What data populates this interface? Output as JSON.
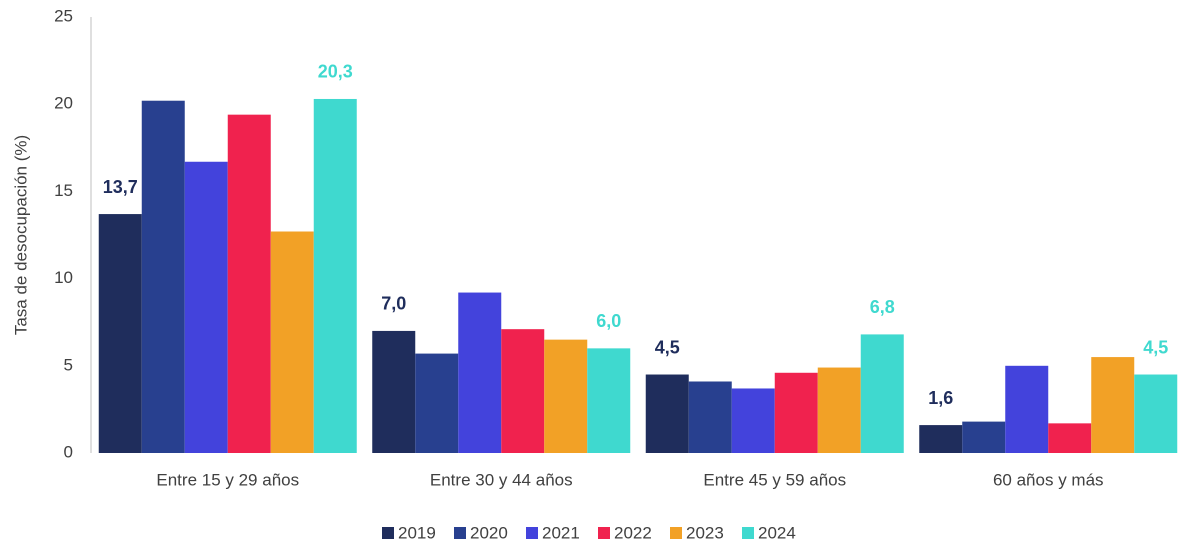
{
  "chart_data": {
    "type": "bar",
    "y_label": "Tasa de desocupación (%)",
    "categories": [
      "Entre 15 y 29 años",
      "Entre 30 y 44 años",
      "Entre 45 y 59 años",
      "60 años y más"
    ],
    "series": [
      {
        "name": "2019",
        "color": "#1f2d5c",
        "values": [
          13.7,
          7.0,
          4.5,
          1.6
        ],
        "value_labels": [
          "13,7",
          "7,0",
          "4,5",
          "1,6"
        ]
      },
      {
        "name": "2020",
        "color": "#28408f",
        "values": [
          20.2,
          5.7,
          4.1,
          1.8
        ]
      },
      {
        "name": "2021",
        "color": "#4343dc",
        "values": [
          16.7,
          9.2,
          3.7,
          5.0
        ]
      },
      {
        "name": "2022",
        "color": "#f0224e",
        "values": [
          19.4,
          7.1,
          4.6,
          1.7
        ]
      },
      {
        "name": "2023",
        "color": "#f2a126",
        "values": [
          12.7,
          6.5,
          4.9,
          5.5
        ]
      },
      {
        "name": "2024",
        "color": "#3fd9cf",
        "values": [
          20.3,
          6.0,
          6.8,
          4.5
        ],
        "value_labels": [
          "20,3",
          "6,0",
          "6,8",
          "4,5"
        ]
      }
    ],
    "ylim": [
      0,
      25
    ],
    "yticks": [
      0,
      5,
      10,
      15,
      20,
      25
    ],
    "grid": false,
    "legend": "bottom"
  }
}
